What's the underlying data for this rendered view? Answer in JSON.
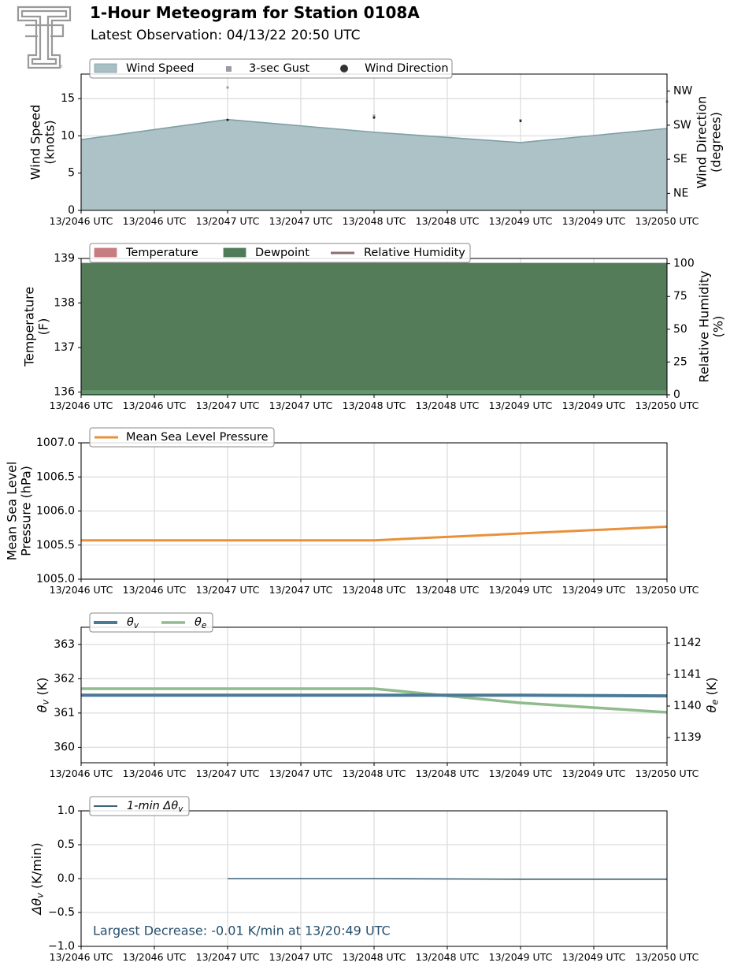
{
  "header": {
    "title": "1-Hour Meteogram for Station 0108A",
    "subtitle": "Latest Observation: 04/13/22 20:50 UTC"
  },
  "colors": {
    "wind_fill": "#a8bfc4",
    "wind_line": "#7f9fa6",
    "gust": "#9a9aaa",
    "direction": "#222222",
    "temperature": "#c67c80",
    "dewpoint": "#4f7c58",
    "dewpoint_band": "#5f9a6d",
    "rh": "#8c6d72",
    "pressure": "#e8913a",
    "theta_v": "#4a7a96",
    "theta_e": "#8fbb8d",
    "dtheta": "#3e6478",
    "annotation": "#264f6b",
    "grid": "#dddddd",
    "logo": "#999999"
  },
  "icons": {
    "logo": "texas-tech-double-t-logo"
  },
  "chart_data": [
    {
      "id": "wind",
      "type": "area",
      "x_ticks": [
        "13/2046 UTC",
        "13/2046 UTC",
        "13/2047 UTC",
        "13/2047 UTC",
        "13/2048 UTC",
        "13/2048 UTC",
        "13/2049 UTC",
        "13/2049 UTC",
        "13/2050 UTC"
      ],
      "x": [
        0,
        1,
        2,
        3,
        4
      ],
      "ylabel": "Wind Speed\n(knots)",
      "ylim": [
        0,
        18.3
      ],
      "y_ticks": [
        0,
        5,
        10,
        15
      ],
      "y2label": "Wind Direction\n(degrees)",
      "y2_ticks": [
        "NE",
        "SE",
        "SW",
        "NW"
      ],
      "y2_tick_values": [
        45,
        135,
        225,
        315
      ],
      "y2lim": [
        0,
        360
      ],
      "legend": [
        "Wind Speed",
        "3-sec Gust",
        "Wind Direction"
      ],
      "series": [
        {
          "name": "Wind Speed",
          "values": [
            9.5,
            12.2,
            10.5,
            9.1,
            11.0
          ]
        },
        {
          "name": "3-sec Gust",
          "values": [
            null,
            16.5,
            12.7,
            12.1,
            14.6
          ]
        },
        {
          "name": "Wind Direction",
          "values": [
            null,
            239,
            245,
            236,
            null
          ]
        }
      ]
    },
    {
      "id": "temperature",
      "type": "area",
      "x_ticks": [
        "13/2046 UTC",
        "13/2046 UTC",
        "13/2047 UTC",
        "13/2047 UTC",
        "13/2048 UTC",
        "13/2048 UTC",
        "13/2049 UTC",
        "13/2049 UTC",
        "13/2050 UTC"
      ],
      "x": [
        0,
        1,
        2,
        3,
        4
      ],
      "ylabel": "Temperature\n(F)",
      "ylim": [
        135.94,
        139.0
      ],
      "y_ticks": [
        136,
        137,
        138,
        139
      ],
      "y2label": "Relative Humidity\n(%)",
      "y2lim": [
        0,
        104
      ],
      "y2_ticks": [
        0,
        25,
        50,
        75,
        100
      ],
      "legend": [
        "Temperature",
        "Dewpoint",
        "Relative Humidity"
      ],
      "series": [
        {
          "name": "Temperature",
          "values": [
            138.9,
            138.9,
            138.9,
            138.9,
            138.9
          ]
        },
        {
          "name": "Dewpoint",
          "values": [
            138.9,
            138.9,
            138.9,
            138.9,
            138.9
          ]
        }
      ]
    },
    {
      "id": "pressure",
      "type": "line",
      "x_ticks": [
        "13/2046 UTC",
        "13/2046 UTC",
        "13/2047 UTC",
        "13/2047 UTC",
        "13/2048 UTC",
        "13/2048 UTC",
        "13/2049 UTC",
        "13/2049 UTC",
        "13/2050 UTC"
      ],
      "x": [
        0,
        1,
        2,
        3,
        4
      ],
      "ylabel": "Mean Sea Level\nPressure (hPa)",
      "ylim": [
        1005.0,
        1007.0
      ],
      "y_ticks": [
        1005.0,
        1005.5,
        1006.0,
        1006.5,
        1007.0
      ],
      "legend": [
        "Mean Sea Level Pressure"
      ],
      "series": [
        {
          "name": "Mean Sea Level Pressure",
          "values": [
            1005.57,
            1005.57,
            1005.57,
            1005.67,
            1005.77
          ]
        }
      ]
    },
    {
      "id": "theta",
      "type": "line",
      "x_ticks": [
        "13/2046 UTC",
        "13/2046 UTC",
        "13/2047 UTC",
        "13/2047 UTC",
        "13/2048 UTC",
        "13/2048 UTC",
        "13/2049 UTC",
        "13/2049 UTC",
        "13/2050 UTC"
      ],
      "x": [
        0,
        1,
        2,
        3,
        4
      ],
      "ylabel": "θv (K)",
      "ylim": [
        359.55,
        363.5
      ],
      "y_ticks": [
        360,
        361,
        362,
        363
      ],
      "y2label": "θe (K)",
      "y2lim": [
        1138.2,
        1142.5
      ],
      "y2_ticks": [
        1139,
        1140,
        1141,
        1142
      ],
      "legend": [
        "θv",
        "θe"
      ],
      "series": [
        {
          "name": "θv",
          "values": [
            361.52,
            361.52,
            361.52,
            361.52,
            361.5
          ]
        },
        {
          "name": "θe",
          "values": [
            1140.55,
            1140.55,
            1140.55,
            1140.1,
            1139.8
          ]
        }
      ]
    },
    {
      "id": "dtheta",
      "type": "line",
      "x_ticks": [
        "13/2046 UTC",
        "13/2046 UTC",
        "13/2047 UTC",
        "13/2047 UTC",
        "13/2048 UTC",
        "13/2048 UTC",
        "13/2049 UTC",
        "13/2049 UTC",
        "13/2050 UTC"
      ],
      "x": [
        1,
        2,
        3,
        4
      ],
      "ylabel": "Δθv (K/min)",
      "ylim": [
        -1.0,
        1.0
      ],
      "y_ticks": [
        "−1.0",
        "−0.5",
        "0.0",
        "0.5",
        "1.0"
      ],
      "y_tick_values": [
        -1.0,
        -0.5,
        0.0,
        0.5,
        1.0
      ],
      "legend": [
        "1-min Δθv"
      ],
      "series": [
        {
          "name": "1-min Δθv",
          "values": [
            0.0,
            0.0,
            -0.01,
            -0.01
          ]
        }
      ],
      "annotation": "Largest Decrease: -0.01 K/min at 13/20:49 UTC"
    }
  ]
}
